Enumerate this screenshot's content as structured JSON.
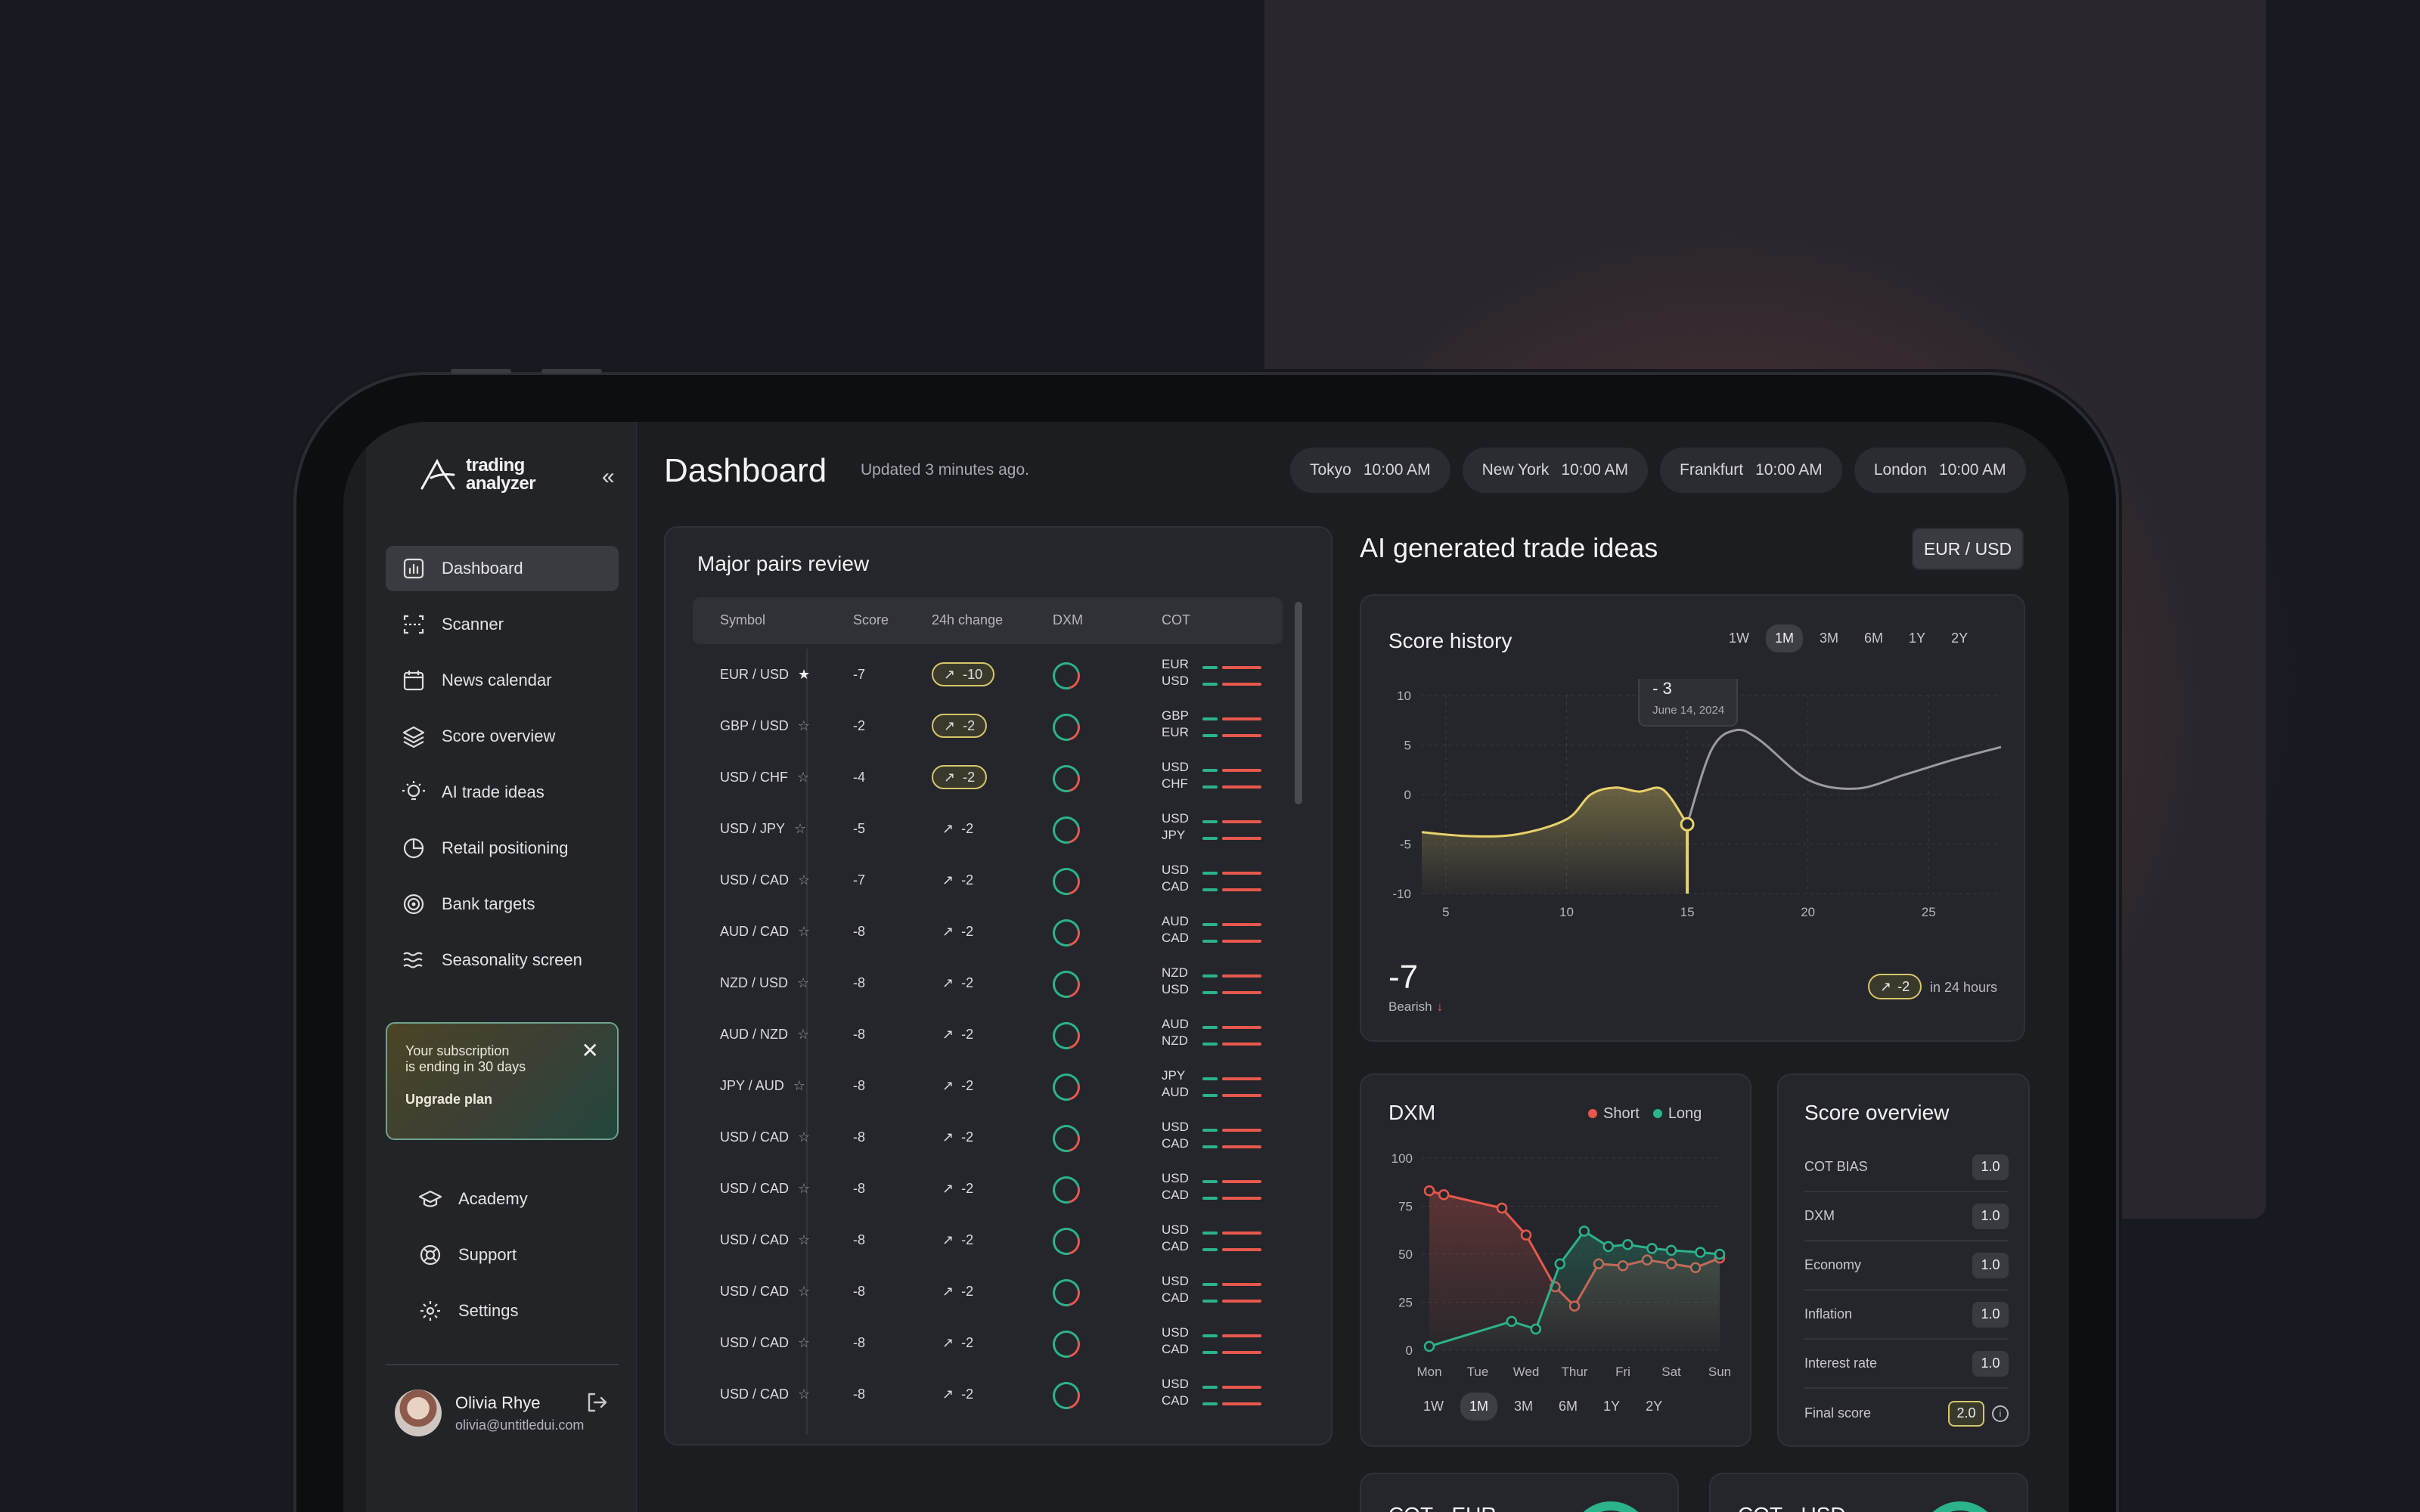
{
  "brand": {
    "line1": "trading",
    "line2": "analyzer"
  },
  "sidebar": {
    "items": [
      {
        "label": "Dashboard",
        "icon": "bar-chart-icon",
        "active": true
      },
      {
        "label": "Scanner",
        "icon": "scan-icon"
      },
      {
        "label": "News calendar",
        "icon": "calendar-icon"
      },
      {
        "label": "Score overview",
        "icon": "layers-icon"
      },
      {
        "label": "AI trade ideas",
        "icon": "lightbulb-icon"
      },
      {
        "label": "Retail positioning",
        "icon": "pie-chart-icon"
      },
      {
        "label": "Bank targets",
        "icon": "target-icon"
      },
      {
        "label": "Seasonality screen",
        "icon": "waves-icon"
      }
    ],
    "bottom": [
      {
        "label": "Academy",
        "icon": "graduation-cap-icon"
      },
      {
        "label": "Support",
        "icon": "life-buoy-icon"
      },
      {
        "label": "Settings",
        "icon": "gear-icon"
      }
    ]
  },
  "promo": {
    "line1": "Your subscription",
    "line2": "is ending in 30 days",
    "cta": "Upgrade plan"
  },
  "user": {
    "name": "Olivia Rhye",
    "email": "olivia@untitledui.com"
  },
  "header": {
    "title": "Dashboard",
    "updated": "Updated 3 minutes ago.",
    "clocks": [
      {
        "city": "Tokyo",
        "time": "10:00 AM"
      },
      {
        "city": "New York",
        "time": "10:00 AM"
      },
      {
        "city": "Frankfurt",
        "time": "10:00 AM"
      },
      {
        "city": "London",
        "time": "10:00 AM"
      }
    ]
  },
  "pairs": {
    "title": "Major pairs review",
    "columns": {
      "symbol": "Symbol",
      "score": "Score",
      "change": "24h change",
      "dxm": "DXM",
      "cot": "COT"
    },
    "rows": [
      {
        "symbol": "EUR / USD",
        "starred": true,
        "score": "-7",
        "change": "-10",
        "badge": true,
        "cot": [
          "EUR",
          "USD"
        ]
      },
      {
        "symbol": "GBP / USD",
        "starred": false,
        "score": "-2",
        "change": "-2",
        "badge": true,
        "cot": [
          "GBP",
          "EUR"
        ]
      },
      {
        "symbol": "USD / CHF",
        "starred": false,
        "score": "-4",
        "change": "-2",
        "badge": true,
        "cot": [
          "USD",
          "CHF"
        ]
      },
      {
        "symbol": "USD / JPY",
        "starred": false,
        "score": "-5",
        "change": "-2",
        "badge": false,
        "cot": [
          "USD",
          "JPY"
        ]
      },
      {
        "symbol": "USD / CAD",
        "starred": false,
        "score": "-7",
        "change": "-2",
        "badge": false,
        "cot": [
          "USD",
          "CAD"
        ]
      },
      {
        "symbol": "AUD / CAD",
        "starred": false,
        "score": "-8",
        "change": "-2",
        "badge": false,
        "cot": [
          "AUD",
          "CAD"
        ]
      },
      {
        "symbol": "NZD / USD",
        "starred": false,
        "score": "-8",
        "change": "-2",
        "badge": false,
        "cot": [
          "NZD",
          "USD"
        ]
      },
      {
        "symbol": "AUD / NZD",
        "starred": false,
        "score": "-8",
        "change": "-2",
        "badge": false,
        "cot": [
          "AUD",
          "NZD"
        ]
      },
      {
        "symbol": "JPY / AUD",
        "starred": false,
        "score": "-8",
        "change": "-2",
        "badge": false,
        "cot": [
          "JPY",
          "AUD"
        ]
      },
      {
        "symbol": "USD / CAD",
        "starred": false,
        "score": "-8",
        "change": "-2",
        "badge": false,
        "cot": [
          "USD",
          "CAD"
        ]
      },
      {
        "symbol": "USD / CAD",
        "starred": false,
        "score": "-8",
        "change": "-2",
        "badge": false,
        "cot": [
          "USD",
          "CAD"
        ]
      },
      {
        "symbol": "USD / CAD",
        "starred": false,
        "score": "-8",
        "change": "-2",
        "badge": false,
        "cot": [
          "USD",
          "CAD"
        ]
      },
      {
        "symbol": "USD / CAD",
        "starred": false,
        "score": "-8",
        "change": "-2",
        "badge": false,
        "cot": [
          "USD",
          "CAD"
        ]
      },
      {
        "symbol": "USD / CAD",
        "starred": false,
        "score": "-8",
        "change": "-2",
        "badge": false,
        "cot": [
          "USD",
          "CAD"
        ]
      },
      {
        "symbol": "USD / CAD",
        "starred": false,
        "score": "-8",
        "change": "-2",
        "badge": false,
        "cot": [
          "USD",
          "CAD"
        ]
      }
    ]
  },
  "ai": {
    "title": "AI generated trade ideas",
    "pair": "EUR / USD"
  },
  "score_history": {
    "title": "Score history",
    "ranges": [
      "1W",
      "1M",
      "3M",
      "6M",
      "1Y",
      "2Y"
    ],
    "active_range": "1M",
    "tooltip": {
      "value": "- 3",
      "date": "June 14, 2024"
    },
    "value": "-7",
    "sentiment": "Bearish",
    "change": "-2",
    "change_note": "in 24 hours"
  },
  "dxm": {
    "title": "DXM",
    "ranges": [
      "1W",
      "1M",
      "3M",
      "6M",
      "1Y",
      "2Y"
    ],
    "active_range": "1M"
  },
  "overview": {
    "title": "Score overview",
    "rows": [
      {
        "label": "COT BIAS",
        "value": "1.0"
      },
      {
        "label": "DXM",
        "value": "1.0"
      },
      {
        "label": "Economy",
        "value": "1.0"
      },
      {
        "label": "Inflation",
        "value": "1.0"
      },
      {
        "label": "Interest rate",
        "value": "1.0"
      },
      {
        "label": "Final score",
        "value": "2.0",
        "final": true
      }
    ]
  },
  "cot_cards": [
    {
      "title": "COT - EUR"
    },
    {
      "title": "COT - USD"
    }
  ],
  "chart_data": [
    {
      "type": "area",
      "title": "Score history",
      "x_ticks": [
        5,
        10,
        15,
        20,
        25
      ],
      "y_ticks": [
        10,
        5,
        0,
        -5,
        -10
      ],
      "ylim": [
        -10,
        10
      ],
      "xlim": [
        4,
        28
      ],
      "series": [
        {
          "x": [
            4,
            6,
            8,
            10,
            11,
            12,
            13,
            14,
            15,
            16,
            17,
            18,
            20,
            22,
            24,
            26,
            28
          ],
          "values": [
            -3.8,
            -4.2,
            -4.0,
            -2.5,
            0,
            0.7,
            0.3,
            0.5,
            -3,
            4.5,
            6.5,
            5.5,
            1.5,
            0.6,
            2.0,
            3.5,
            4.8
          ]
        }
      ],
      "highlight": {
        "x": 15,
        "value": -3
      },
      "colors": {
        "highlight": "#e8d16a",
        "line": "#9a9aa0"
      }
    },
    {
      "type": "line",
      "title": "DXM",
      "categories": [
        "Mon",
        "Tue",
        "Wed",
        "Thur",
        "Fri",
        "Sat",
        "Sun"
      ],
      "y_ticks": [
        100,
        75,
        50,
        25,
        0
      ],
      "ylim": [
        0,
        100
      ],
      "series": [
        {
          "name": "Short",
          "color": "#e8574d",
          "x": [
            0,
            0.3,
            1.5,
            2.0,
            2.6,
            3.0,
            3.5,
            4.0,
            4.5,
            5.0,
            5.5,
            6.0
          ],
          "values": [
            83,
            81,
            74,
            60,
            33,
            23,
            45,
            44,
            47,
            45,
            43,
            48
          ]
        },
        {
          "name": "Long",
          "color": "#2bb38a",
          "x": [
            0,
            1.7,
            2.2,
            2.7,
            3.2,
            3.7,
            4.1,
            4.6,
            5.0,
            5.6,
            6.0
          ],
          "values": [
            2,
            15,
            11,
            45,
            62,
            54,
            55,
            53,
            52,
            51,
            50
          ]
        }
      ]
    }
  ]
}
